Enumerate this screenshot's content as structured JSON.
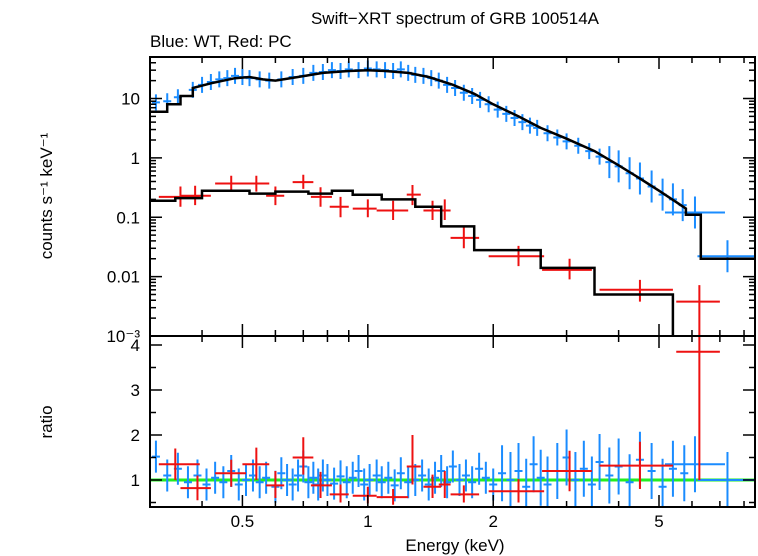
{
  "chart_data": {
    "type": "scatter",
    "title": "Swift−XRT spectrum of GRB 100514A",
    "subtitle": "Blue: WT, Red: PC",
    "xlabel": "Energy (keV)",
    "x_scale": "log",
    "xlim": [
      0.3,
      8.5
    ],
    "x_ticks": [
      {
        "value": 0.5,
        "label": "0.5"
      },
      {
        "value": 1,
        "label": "1"
      },
      {
        "value": 2,
        "label": "2"
      },
      {
        "value": 5,
        "label": "5"
      }
    ],
    "top_panel": {
      "ylabel": "counts s⁻¹ keV⁻¹",
      "y_scale": "log",
      "ylim": [
        0.001,
        50
      ],
      "y_ticks": [
        {
          "value": 10,
          "label": "10"
        },
        {
          "value": 1,
          "label": "1"
        },
        {
          "value": 0.1,
          "label": "0.1"
        },
        {
          "value": 0.01,
          "label": "0.01"
        },
        {
          "value": 0.001,
          "label": "10⁻³"
        }
      ]
    },
    "bottom_panel": {
      "ylabel": "ratio",
      "y_scale": "linear",
      "ylim": [
        0.4,
        4.2
      ],
      "y_ticks": [
        {
          "value": 1,
          "label": "1"
        },
        {
          "value": 2,
          "label": "2"
        },
        {
          "value": 3,
          "label": "3"
        },
        {
          "value": 4,
          "label": "4"
        }
      ],
      "reference_line": 1
    },
    "colors": {
      "wt": "#1a8cff",
      "pc": "#ee1111",
      "model": "#000000",
      "unity": "#22ee22"
    },
    "model_wt": [
      [
        0.3,
        6
      ],
      [
        0.33,
        6
      ],
      [
        0.33,
        8
      ],
      [
        0.355,
        8
      ],
      [
        0.355,
        11
      ],
      [
        0.38,
        11
      ],
      [
        0.38,
        15
      ],
      [
        0.42,
        18
      ],
      [
        0.48,
        22
      ],
      [
        0.52,
        23
      ],
      [
        0.56,
        21
      ],
      [
        0.6,
        20
      ],
      [
        0.68,
        23
      ],
      [
        0.78,
        27
      ],
      [
        0.9,
        29
      ],
      [
        1.0,
        30
      ],
      [
        1.1,
        29
      ],
      [
        1.25,
        27
      ],
      [
        1.4,
        23
      ],
      [
        1.6,
        17
      ],
      [
        1.8,
        12
      ],
      [
        2.0,
        8
      ],
      [
        2.3,
        5
      ],
      [
        2.6,
        3.2
      ],
      [
        3.0,
        2.1
      ],
      [
        3.5,
        1.3
      ],
      [
        4.0,
        0.75
      ],
      [
        4.5,
        0.45
      ],
      [
        5.0,
        0.28
      ],
      [
        5.5,
        0.18
      ],
      [
        5.8,
        0.14
      ],
      [
        5.8,
        0.11
      ],
      [
        6.3,
        0.11
      ],
      [
        6.3,
        0.02
      ],
      [
        8.5,
        0.02
      ]
    ],
    "model_pc": [
      [
        0.3,
        0.19
      ],
      [
        0.345,
        0.19
      ],
      [
        0.345,
        0.21
      ],
      [
        0.4,
        0.21
      ],
      [
        0.4,
        0.28
      ],
      [
        0.52,
        0.28
      ],
      [
        0.52,
        0.25
      ],
      [
        0.6,
        0.25
      ],
      [
        0.6,
        0.27
      ],
      [
        0.72,
        0.27
      ],
      [
        0.72,
        0.25
      ],
      [
        0.82,
        0.25
      ],
      [
        0.82,
        0.28
      ],
      [
        0.92,
        0.28
      ],
      [
        0.92,
        0.24
      ],
      [
        1.08,
        0.24
      ],
      [
        1.08,
        0.2
      ],
      [
        1.3,
        0.2
      ],
      [
        1.3,
        0.15
      ],
      [
        1.5,
        0.15
      ],
      [
        1.5,
        0.07
      ],
      [
        1.8,
        0.07
      ],
      [
        1.8,
        0.028
      ],
      [
        2.6,
        0.028
      ],
      [
        2.6,
        0.014
      ],
      [
        3.5,
        0.014
      ],
      [
        3.5,
        0.005
      ],
      [
        5.4,
        0.005
      ],
      [
        5.4,
        0.001
      ]
    ],
    "pc_spectrum": [
      {
        "x": 0.355,
        "xlo": 0.315,
        "xhi": 0.395,
        "y": 0.22,
        "ylo": 0.15,
        "yhi": 0.33
      },
      {
        "x": 0.385,
        "xlo": 0.355,
        "xhi": 0.42,
        "y": 0.23,
        "ylo": 0.16,
        "yhi": 0.34
      },
      {
        "x": 0.47,
        "xlo": 0.43,
        "xhi": 0.51,
        "y": 0.37,
        "ylo": 0.27,
        "yhi": 0.5
      },
      {
        "x": 0.54,
        "xlo": 0.5,
        "xhi": 0.58,
        "y": 0.37,
        "ylo": 0.27,
        "yhi": 0.5
      },
      {
        "x": 0.6,
        "xlo": 0.57,
        "xhi": 0.63,
        "y": 0.23,
        "ylo": 0.16,
        "yhi": 0.33
      },
      {
        "x": 0.7,
        "xlo": 0.66,
        "xhi": 0.74,
        "y": 0.39,
        "ylo": 0.3,
        "yhi": 0.52
      },
      {
        "x": 0.77,
        "xlo": 0.73,
        "xhi": 0.82,
        "y": 0.22,
        "ylo": 0.15,
        "yhi": 0.32
      },
      {
        "x": 0.86,
        "xlo": 0.81,
        "xhi": 0.9,
        "y": 0.15,
        "ylo": 0.1,
        "yhi": 0.22
      },
      {
        "x": 1.0,
        "xlo": 0.92,
        "xhi": 1.05,
        "y": 0.14,
        "ylo": 0.1,
        "yhi": 0.2
      },
      {
        "x": 1.15,
        "xlo": 1.05,
        "xhi": 1.25,
        "y": 0.13,
        "ylo": 0.09,
        "yhi": 0.19
      },
      {
        "x": 1.28,
        "xlo": 1.24,
        "xhi": 1.34,
        "y": 0.24,
        "ylo": 0.16,
        "yhi": 0.35
      },
      {
        "x": 1.43,
        "xlo": 1.36,
        "xhi": 1.5,
        "y": 0.13,
        "ylo": 0.09,
        "yhi": 0.19
      },
      {
        "x": 1.53,
        "xlo": 1.48,
        "xhi": 1.58,
        "y": 0.13,
        "ylo": 0.09,
        "yhi": 0.2
      },
      {
        "x": 1.7,
        "xlo": 1.58,
        "xhi": 1.85,
        "y": 0.045,
        "ylo": 0.03,
        "yhi": 0.07
      },
      {
        "x": 2.3,
        "xlo": 1.95,
        "xhi": 2.65,
        "y": 0.022,
        "ylo": 0.015,
        "yhi": 0.033
      },
      {
        "x": 3.05,
        "xlo": 2.62,
        "xhi": 3.45,
        "y": 0.013,
        "ylo": 0.009,
        "yhi": 0.02
      },
      {
        "x": 4.5,
        "xlo": 3.6,
        "xhi": 5.4,
        "y": 0.006,
        "ylo": 0.0038,
        "yhi": 0.0088
      },
      {
        "x": 6.25,
        "xlo": 5.5,
        "xhi": 7.0,
        "y": 0.0038,
        "ylo": 0.001,
        "yhi": 0.0072
      }
    ],
    "pc_ratio": [
      {
        "x": 0.345,
        "xlo": 0.315,
        "xhi": 0.395,
        "y": 1.35,
        "ylo": 1.0,
        "yhi": 1.7
      },
      {
        "x": 0.39,
        "xlo": 0.355,
        "xhi": 0.42,
        "y": 0.82,
        "ylo": 0.55,
        "yhi": 1.1
      },
      {
        "x": 0.47,
        "xlo": 0.43,
        "xhi": 0.51,
        "y": 1.15,
        "ylo": 0.85,
        "yhi": 1.45
      },
      {
        "x": 0.54,
        "xlo": 0.5,
        "xhi": 0.58,
        "y": 1.35,
        "ylo": 1.0,
        "yhi": 1.72
      },
      {
        "x": 0.6,
        "xlo": 0.57,
        "xhi": 0.63,
        "y": 0.88,
        "ylo": 0.6,
        "yhi": 1.2
      },
      {
        "x": 0.7,
        "xlo": 0.66,
        "xhi": 0.74,
        "y": 1.5,
        "ylo": 1.12,
        "yhi": 1.95
      },
      {
        "x": 0.77,
        "xlo": 0.73,
        "xhi": 0.82,
        "y": 0.88,
        "ylo": 0.6,
        "yhi": 1.18
      },
      {
        "x": 0.86,
        "xlo": 0.81,
        "xhi": 0.9,
        "y": 0.68,
        "ylo": 0.5,
        "yhi": 0.9
      },
      {
        "x": 1.0,
        "xlo": 0.92,
        "xhi": 1.05,
        "y": 0.65,
        "ylo": 0.48,
        "yhi": 0.85
      },
      {
        "x": 1.15,
        "xlo": 1.05,
        "xhi": 1.25,
        "y": 0.62,
        "ylo": 0.45,
        "yhi": 0.8
      },
      {
        "x": 1.28,
        "xlo": 1.24,
        "xhi": 1.34,
        "y": 1.3,
        "ylo": 0.9,
        "yhi": 2.0
      },
      {
        "x": 1.43,
        "xlo": 1.36,
        "xhi": 1.5,
        "y": 0.85,
        "ylo": 0.6,
        "yhi": 1.12
      },
      {
        "x": 1.53,
        "xlo": 1.48,
        "xhi": 1.58,
        "y": 0.9,
        "ylo": 0.6,
        "yhi": 1.2
      },
      {
        "x": 1.7,
        "xlo": 1.58,
        "xhi": 1.85,
        "y": 0.68,
        "ylo": 0.5,
        "yhi": 0.88
      },
      {
        "x": 2.3,
        "xlo": 1.95,
        "xhi": 2.65,
        "y": 0.75,
        "ylo": 0.5,
        "yhi": 1.02
      },
      {
        "x": 3.05,
        "xlo": 2.62,
        "xhi": 3.45,
        "y": 1.2,
        "ylo": 0.75,
        "yhi": 1.65
      },
      {
        "x": 4.5,
        "xlo": 3.6,
        "xhi": 5.4,
        "y": 1.32,
        "ylo": 0.8,
        "yhi": 1.85
      },
      {
        "x": 6.25,
        "xlo": 5.5,
        "xhi": 7.0,
        "y": 3.85,
        "ylo": 1.0,
        "yhi": 4.2
      }
    ],
    "wt_spectrum": [
      [
        0.31,
        8.6
      ],
      [
        0.33,
        9.0
      ],
      [
        0.35,
        10.5
      ],
      [
        0.38,
        14
      ],
      [
        0.4,
        17
      ],
      [
        0.42,
        19
      ],
      [
        0.44,
        21
      ],
      [
        0.46,
        22
      ],
      [
        0.48,
        24
      ],
      [
        0.5,
        23
      ],
      [
        0.52,
        22
      ],
      [
        0.55,
        21
      ],
      [
        0.58,
        20
      ],
      [
        0.62,
        21
      ],
      [
        0.66,
        23
      ],
      [
        0.7,
        24
      ],
      [
        0.74,
        27
      ],
      [
        0.78,
        28
      ],
      [
        0.82,
        30
      ],
      [
        0.86,
        29
      ],
      [
        0.9,
        31
      ],
      [
        0.95,
        30
      ],
      [
        1.0,
        32
      ],
      [
        1.05,
        31
      ],
      [
        1.1,
        30
      ],
      [
        1.15,
        29
      ],
      [
        1.2,
        31
      ],
      [
        1.25,
        27
      ],
      [
        1.3,
        25
      ],
      [
        1.36,
        24
      ],
      [
        1.42,
        22
      ],
      [
        1.48,
        20
      ],
      [
        1.55,
        17
      ],
      [
        1.62,
        15
      ],
      [
        1.7,
        12.5
      ],
      [
        1.78,
        11
      ],
      [
        1.86,
        9.5
      ],
      [
        1.95,
        8
      ],
      [
        2.05,
        6.5
      ],
      [
        2.15,
        5.5
      ],
      [
        2.25,
        4.7
      ],
      [
        2.35,
        4
      ],
      [
        2.45,
        3.5
      ],
      [
        2.55,
        3.2
      ],
      [
        2.7,
        2.6
      ],
      [
        2.85,
        2.2
      ],
      [
        3.0,
        1.9
      ],
      [
        3.2,
        1.6
      ],
      [
        3.4,
        1.3
      ],
      [
        3.6,
        1.05
      ],
      [
        3.8,
        0.85
      ],
      [
        4.0,
        0.72
      ],
      [
        4.25,
        0.55
      ],
      [
        4.5,
        0.45
      ],
      [
        4.8,
        0.33
      ],
      [
        5.1,
        0.24
      ],
      [
        5.4,
        0.2
      ],
      [
        5.7,
        0.16
      ],
      [
        6.1,
        0.12
      ],
      [
        7.3,
        0.022
      ]
    ],
    "wt_ratio": [
      [
        0.31,
        1.52
      ],
      [
        0.33,
        1.1
      ],
      [
        0.35,
        1.25
      ],
      [
        0.37,
        0.95
      ],
      [
        0.39,
        1.1
      ],
      [
        0.41,
        0.9
      ],
      [
        0.43,
        1.05
      ],
      [
        0.45,
        0.95
      ],
      [
        0.47,
        1.2
      ],
      [
        0.49,
        0.9
      ],
      [
        0.51,
        1.0
      ],
      [
        0.53,
        1.1
      ],
      [
        0.55,
        0.95
      ],
      [
        0.57,
        1.05
      ],
      [
        0.6,
        0.85
      ],
      [
        0.62,
        1.15
      ],
      [
        0.64,
        1.0
      ],
      [
        0.66,
        0.9
      ],
      [
        0.68,
        1.1
      ],
      [
        0.7,
        1.3
      ],
      [
        0.72,
        0.95
      ],
      [
        0.74,
        1.05
      ],
      [
        0.76,
        0.9
      ],
      [
        0.78,
        1.1
      ],
      [
        0.8,
        1.0
      ],
      [
        0.83,
        0.92
      ],
      [
        0.86,
        1.08
      ],
      [
        0.89,
        0.95
      ],
      [
        0.92,
        1.05
      ],
      [
        0.95,
        1.2
      ],
      [
        0.98,
        0.9
      ],
      [
        1.01,
        1.0
      ],
      [
        1.05,
        1.1
      ],
      [
        1.08,
        0.95
      ],
      [
        1.12,
        1.05
      ],
      [
        1.16,
        0.88
      ],
      [
        1.2,
        1.15
      ],
      [
        1.25,
        0.95
      ],
      [
        1.3,
        1.0
      ],
      [
        1.35,
        1.1
      ],
      [
        1.4,
        0.9
      ],
      [
        1.45,
        1.05
      ],
      [
        1.5,
        1.2
      ],
      [
        1.55,
        0.95
      ],
      [
        1.6,
        1.3
      ],
      [
        1.66,
        1.0
      ],
      [
        1.72,
        1.1
      ],
      [
        1.78,
        0.95
      ],
      [
        1.85,
        1.25
      ],
      [
        1.92,
        1.05
      ],
      [
        2.0,
        0.9
      ],
      [
        2.1,
        1.15
      ],
      [
        2.2,
        1.0
      ],
      [
        2.3,
        1.2
      ],
      [
        2.4,
        0.85
      ],
      [
        2.5,
        1.35
      ],
      [
        2.6,
        1.05
      ],
      [
        2.7,
        0.9
      ],
      [
        2.85,
        1.2
      ],
      [
        3.0,
        1.5
      ],
      [
        3.15,
        1.0
      ],
      [
        3.3,
        1.25
      ],
      [
        3.45,
        0.9
      ],
      [
        3.6,
        1.4
      ],
      [
        3.8,
        1.1
      ],
      [
        4.0,
        1.3
      ],
      [
        4.25,
        0.95
      ],
      [
        4.5,
        1.45
      ],
      [
        4.8,
        1.2
      ],
      [
        5.1,
        0.85
      ],
      [
        5.4,
        1.25
      ],
      [
        5.75,
        1.15
      ],
      [
        6.1,
        1.35
      ],
      [
        7.3,
        1.0
      ]
    ]
  }
}
